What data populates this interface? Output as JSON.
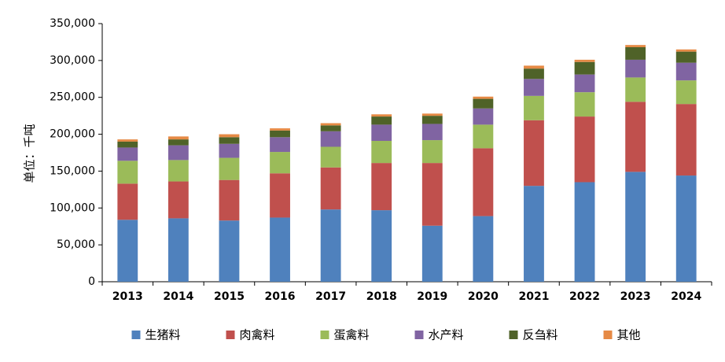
{
  "chart_data": {
    "type": "bar",
    "stacked": true,
    "title": "",
    "xlabel": "",
    "ylabel": "单位：千吨",
    "ylim": [
      0,
      350000
    ],
    "yticks": [
      "0",
      "50,000",
      "100,000",
      "150,000",
      "200,000",
      "250,000",
      "300,000",
      "350,000"
    ],
    "ytick_values": [
      0,
      50000,
      100000,
      150000,
      200000,
      250000,
      300000,
      350000
    ],
    "grid": false,
    "legend_position": "bottom",
    "categories": [
      "2013",
      "2014",
      "2015",
      "2016",
      "2017",
      "2018",
      "2019",
      "2020",
      "2021",
      "2022",
      "2023",
      "2024"
    ],
    "series": [
      {
        "name": "生猪料",
        "color": "#4F81BD",
        "values": [
          84000,
          86000,
          83000,
          87000,
          98000,
          97000,
          76000,
          89000,
          130000,
          135000,
          149000,
          144000
        ]
      },
      {
        "name": "肉禽料",
        "color": "#C0504D",
        "values": [
          49000,
          50000,
          55000,
          60000,
          57000,
          64000,
          85000,
          92000,
          89000,
          89000,
          95000,
          97000
        ]
      },
      {
        "name": "蛋禽料",
        "color": "#9BBB59",
        "values": [
          31000,
          29000,
          30000,
          29000,
          28000,
          30000,
          31000,
          32000,
          33000,
          33000,
          33000,
          32000
        ]
      },
      {
        "name": "水产料",
        "color": "#8064A2",
        "values": [
          18000,
          20000,
          19000,
          20000,
          21000,
          22000,
          22000,
          22000,
          23000,
          24000,
          24000,
          24000
        ]
      },
      {
        "name": "反刍料",
        "color": "#4F6228",
        "values": [
          8000,
          8000,
          9000,
          9000,
          8000,
          11000,
          11000,
          13000,
          14000,
          17000,
          17000,
          15000
        ]
      },
      {
        "name": "其他",
        "color": "#E68A45",
        "values": [
          3000,
          4000,
          4000,
          3000,
          3000,
          3000,
          3000,
          3000,
          4000,
          3000,
          3000,
          3000
        ]
      }
    ]
  }
}
